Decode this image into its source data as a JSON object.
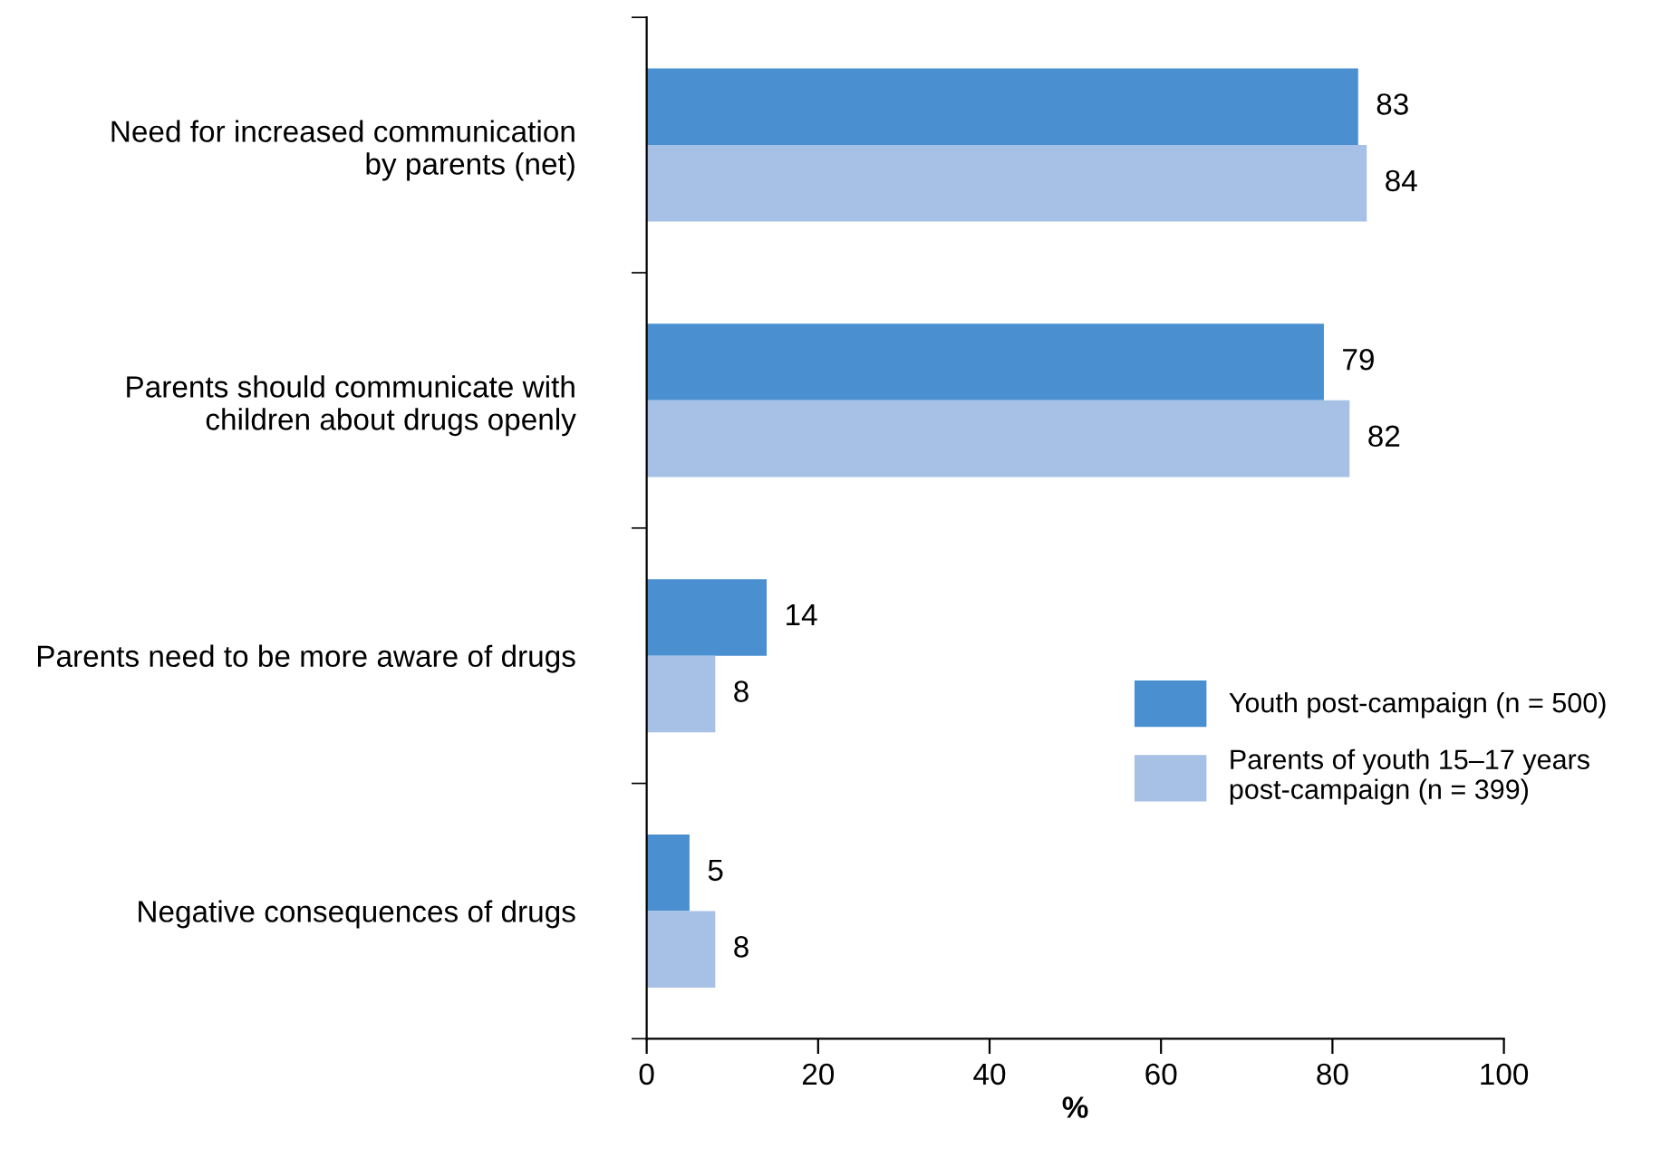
{
  "chart_data": {
    "type": "bar",
    "orientation": "horizontal",
    "categories": [
      "Need for increased communication\nby parents (net)",
      "Parents should communicate with\nchildren about drugs openly",
      "Parents need to be more aware of drugs",
      "Negative consequences of drugs"
    ],
    "series": [
      {
        "name": "Youth post-campaign (n = 500)",
        "color": "#4a90d0",
        "values": [
          83,
          79,
          14,
          5
        ]
      },
      {
        "name": "Parents of youth 15–17 years\npost-campaign (n = 399)",
        "color": "#a7c1e6",
        "values": [
          84,
          82,
          8,
          8
        ]
      }
    ],
    "xlabel": "%",
    "xlim": [
      0,
      100
    ],
    "xticks": [
      0,
      20,
      40,
      60,
      80,
      100
    ],
    "data_labels": true,
    "legend": "right",
    "grid": false
  }
}
